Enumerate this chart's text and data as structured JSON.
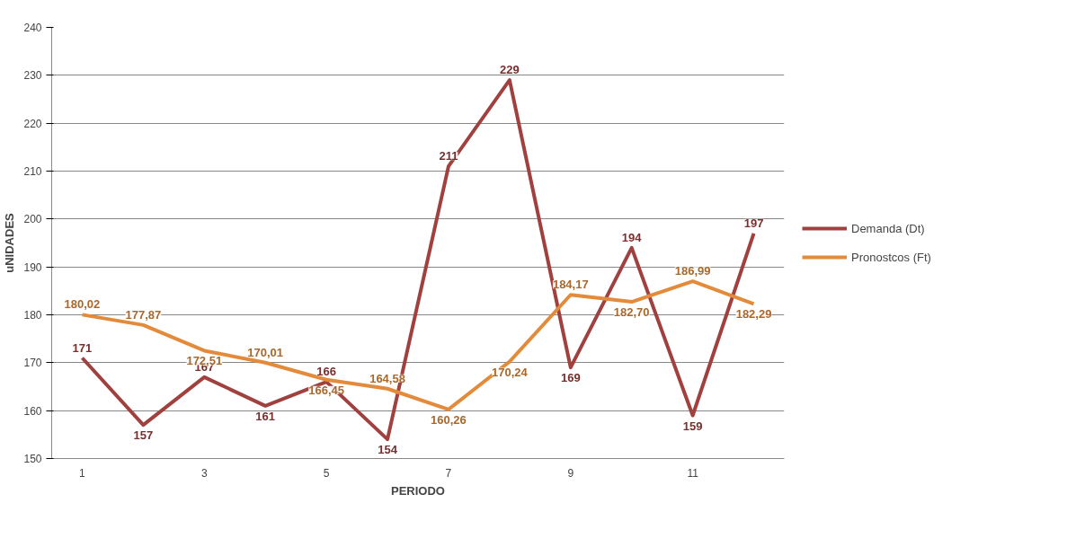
{
  "chart_data": {
    "type": "line",
    "xlabel": "PERIODO",
    "ylabel": "uNIDADES",
    "categories": [
      "1",
      null,
      "3",
      null,
      "5",
      null,
      "7",
      null,
      "9",
      null,
      "11",
      null
    ],
    "series": [
      {
        "name": "Demanda (Dt)",
        "color": "#a0413f",
        "values": [
          171,
          157,
          167,
          161,
          166,
          154,
          211,
          229,
          169,
          194,
          159,
          197
        ],
        "value_labels": [
          "171",
          "157",
          "167",
          "161",
          "166",
          "154",
          "211",
          "229",
          "169",
          "194",
          "159",
          "197"
        ]
      },
      {
        "name": "Pronostcos (Ft)",
        "color": "#e38b3a",
        "values": [
          180.02,
          177.87,
          172.51,
          170.01,
          166.45,
          164.58,
          160.26,
          170.24,
          184.17,
          182.7,
          186.99,
          182.29
        ],
        "value_labels": [
          "180,02",
          "177,87",
          "172,51",
          "170,01",
          "166,45",
          "164,58",
          "160,26",
          "170,24",
          "184,17",
          "182,70",
          "186,99",
          "182,29"
        ]
      }
    ],
    "ylim": [
      150,
      240
    ],
    "yticks": [
      150,
      160,
      170,
      180,
      190,
      200,
      210,
      220,
      230,
      240
    ],
    "grid": "y",
    "legend": "right",
    "marker": "none",
    "line_style": "solid"
  }
}
